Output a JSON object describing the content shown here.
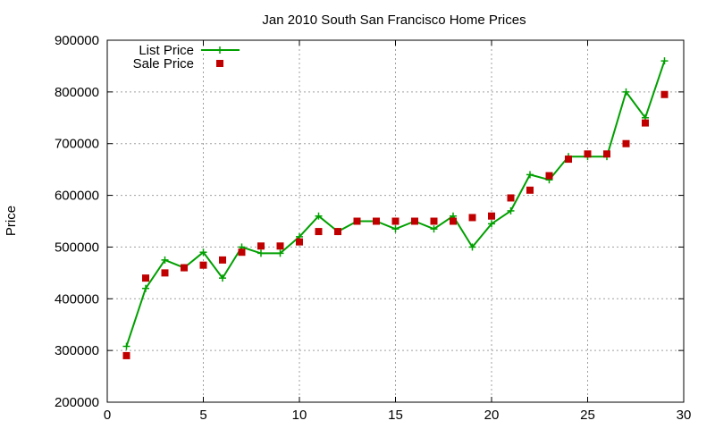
{
  "chart_data": {
    "type": "line",
    "title": "Jan 2010 South San Francisco Home Prices",
    "xlabel": "",
    "ylabel": "Price",
    "xlim": [
      0,
      30
    ],
    "ylim": [
      200000,
      900000
    ],
    "x_ticks": [
      0,
      5,
      10,
      15,
      20,
      25,
      30
    ],
    "y_ticks": [
      200000,
      300000,
      400000,
      500000,
      600000,
      700000,
      800000,
      900000
    ],
    "grid": true,
    "legend_position": "top-left",
    "series": [
      {
        "name": "List Price",
        "style": "line-with-plus-markers",
        "color": "#00a000",
        "x": [
          1,
          2,
          3,
          4,
          5,
          6,
          7,
          8,
          9,
          10,
          11,
          12,
          13,
          14,
          15,
          16,
          17,
          18,
          19,
          20,
          21,
          22,
          23,
          24,
          25,
          26,
          27,
          28,
          29
        ],
        "values": [
          308000,
          420000,
          475000,
          460000,
          490000,
          440000,
          500000,
          488000,
          488000,
          520000,
          560000,
          530000,
          550000,
          550000,
          535000,
          550000,
          535000,
          560000,
          500000,
          545000,
          570000,
          640000,
          630000,
          675000,
          675000,
          675000,
          800000,
          750000,
          860000
        ]
      },
      {
        "name": "Sale Price",
        "style": "square-markers",
        "color": "#c00000",
        "x": [
          1,
          2,
          3,
          4,
          5,
          6,
          7,
          8,
          9,
          10,
          11,
          12,
          13,
          14,
          15,
          16,
          17,
          18,
          19,
          20,
          21,
          22,
          23,
          24,
          25,
          26,
          27,
          28,
          29
        ],
        "values": [
          290000,
          440000,
          450000,
          460000,
          465000,
          475000,
          490000,
          502000,
          502000,
          510000,
          530000,
          530000,
          550000,
          550000,
          550000,
          550000,
          550000,
          550000,
          557000,
          560000,
          595000,
          610000,
          638000,
          670000,
          680000,
          680000,
          700000,
          740000,
          795000
        ]
      }
    ]
  }
}
